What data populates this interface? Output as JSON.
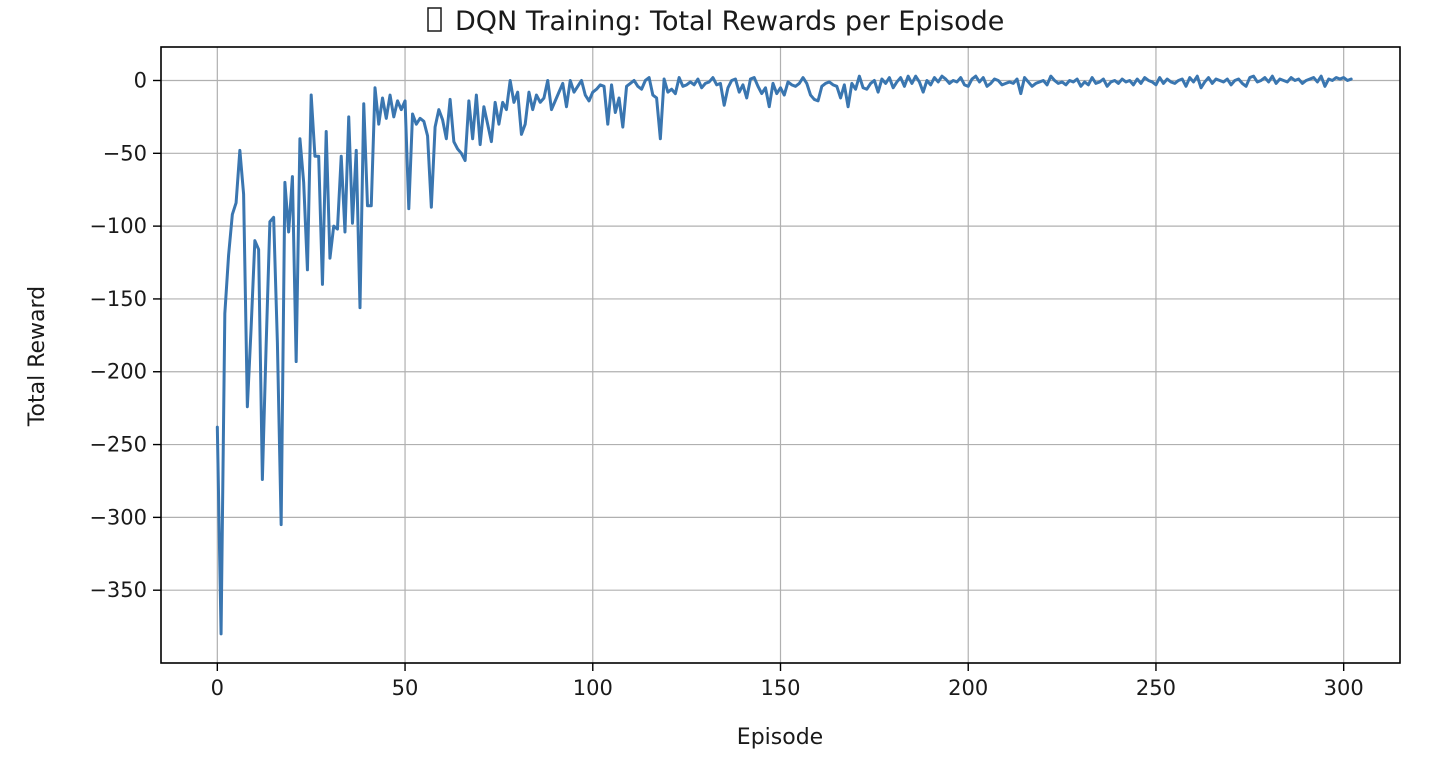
{
  "chart_data": {
    "type": "line",
    "title": "DQN Training: Total Rewards per Episode",
    "title_icon": "missing-glyph-box",
    "xlabel": "Episode",
    "ylabel": "Total Reward",
    "xlim": [
      -15,
      315
    ],
    "ylim": [
      -400,
      23
    ],
    "xticks": [
      0,
      50,
      100,
      150,
      200,
      250,
      300
    ],
    "xtick_labels": [
      "0",
      "50",
      "100",
      "150",
      "200",
      "250",
      "300"
    ],
    "yticks": [
      0,
      -50,
      -100,
      -150,
      -200,
      -250,
      -300,
      -350
    ],
    "ytick_labels": [
      "0",
      "−50",
      "−100",
      "−150",
      "−200",
      "−250",
      "−300",
      "−350"
    ],
    "grid": true,
    "line_color": "#3a76b0",
    "series": [
      {
        "values": [
          -238,
          -380,
          -160,
          -120,
          -92,
          -84,
          -48,
          -78,
          -224,
          -170,
          -110,
          -116,
          -274,
          -182,
          -97,
          -94,
          -180,
          -305,
          -70,
          -104,
          -66,
          -193,
          -40,
          -70,
          -130,
          -10,
          -52,
          -52,
          -140,
          -35,
          -122,
          -100,
          -102,
          -52,
          -104,
          -25,
          -98,
          -48,
          -156,
          -16,
          -86,
          -86,
          -5,
          -30,
          -12,
          -26,
          -10,
          -25,
          -14,
          -20,
          -14,
          -88,
          -23,
          -30,
          -26,
          -28,
          -38,
          -87,
          -32,
          -20,
          -27,
          -40,
          -13,
          -42,
          -47,
          -50,
          -55,
          -14,
          -40,
          -10,
          -44,
          -18,
          -30,
          -42,
          -15,
          -30,
          -15,
          -20,
          0,
          -15,
          -8,
          -37,
          -30,
          -8,
          -20,
          -10,
          -15,
          -12,
          0,
          -20,
          -14,
          -8,
          -2,
          -18,
          0,
          -8,
          -4,
          0,
          -10,
          -14,
          -8,
          -6,
          -3,
          -4,
          -30,
          -3,
          -22,
          -12,
          -32,
          -4,
          -2,
          0,
          -4,
          -6,
          0,
          2,
          -10,
          -12,
          -40,
          1,
          -8,
          -6,
          -9,
          2,
          -4,
          -3,
          -1,
          -3,
          1,
          -5,
          -2,
          -1,
          2,
          -3,
          -2,
          -17,
          -5,
          0,
          1,
          -8,
          -3,
          -12,
          1,
          2,
          -4,
          -9,
          -5,
          -18,
          -2,
          -9,
          -5,
          -10,
          -1,
          -3,
          -4,
          -2,
          2,
          -2,
          -10,
          -13,
          -14,
          -4,
          -2,
          -1,
          -3,
          -4,
          -12,
          -3,
          -18,
          -2,
          -6,
          3,
          -5,
          -6,
          -2,
          0,
          -8,
          1,
          -2,
          2,
          -5,
          -1,
          2,
          -4,
          3,
          -2,
          3,
          -1,
          -8,
          0,
          -3,
          2,
          -1,
          3,
          1,
          -2,
          0,
          -1,
          2,
          -3,
          -4,
          1,
          3,
          -1,
          2,
          -4,
          -2,
          1,
          0,
          -3,
          -2,
          -1,
          -2,
          1,
          -9,
          2,
          -1,
          -4,
          -2,
          -1,
          0,
          -3,
          3,
          0,
          -2,
          -1,
          -3,
          0,
          -1,
          1,
          -4,
          -1,
          -3,
          2,
          -2,
          -1,
          1,
          -4,
          -1,
          0,
          -2,
          1,
          -1,
          0,
          -3,
          1,
          -2,
          2,
          0,
          -1,
          -3,
          2,
          -2,
          1,
          -1,
          -2,
          0,
          1,
          -4,
          2,
          -1,
          3,
          -5,
          -1,
          2,
          -2,
          1,
          0,
          -1,
          1,
          -3,
          0,
          1,
          -2,
          -4,
          2,
          3,
          -1,
          0,
          2,
          -1,
          3,
          -2,
          1,
          0,
          -1,
          2,
          0,
          1,
          -2,
          0,
          1,
          2,
          -1,
          3,
          -4,
          1,
          0,
          2,
          1,
          2,
          0,
          1
        ]
      }
    ]
  }
}
